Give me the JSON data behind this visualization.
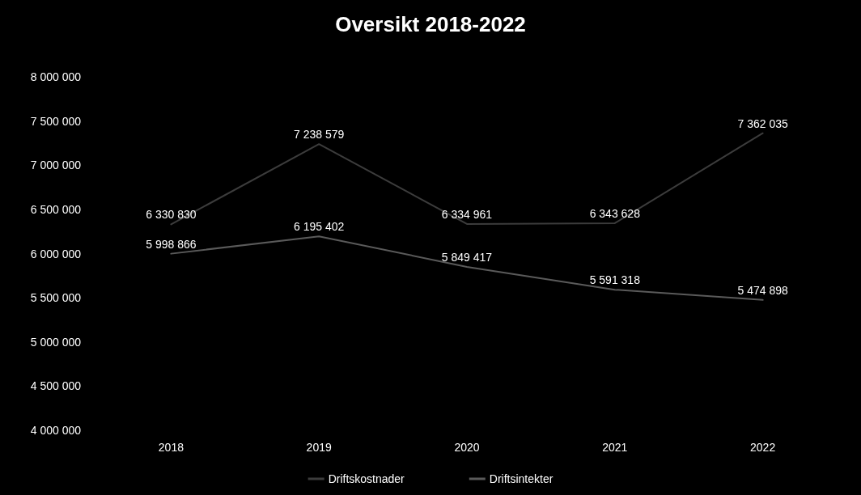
{
  "chart_data": {
    "type": "line",
    "title": "Oversikt 2018-2022",
    "categories": [
      "2018",
      "2019",
      "2020",
      "2021",
      "2022"
    ],
    "series": [
      {
        "name": "Driftskostnader",
        "color": "#3c3c3c",
        "values": [
          6330830,
          7238579,
          6334961,
          6343628,
          7362035
        ],
        "value_labels": [
          "6 330 830",
          "7 238 579",
          "6 334 961",
          "6 343 628",
          "7 362 035"
        ]
      },
      {
        "name": "Driftsintekter",
        "color": "#5a5a5a",
        "values": [
          5998866,
          6195402,
          5849417,
          5591318,
          5474898
        ],
        "value_labels": [
          "5 998 866",
          "6 195 402",
          "5 849 417",
          "5 591 318",
          "5 474 898"
        ]
      }
    ],
    "ylim": [
      4000000,
      8000000
    ],
    "yticks": [
      {
        "value": 4000000,
        "label": "4 000 000"
      },
      {
        "value": 4500000,
        "label": "4 500 000"
      },
      {
        "value": 5000000,
        "label": "5 000 000"
      },
      {
        "value": 5500000,
        "label": "5 500 000"
      },
      {
        "value": 6000000,
        "label": "6 000 000"
      },
      {
        "value": 6500000,
        "label": "6 500 000"
      },
      {
        "value": 7000000,
        "label": "7 000 000"
      },
      {
        "value": 7500000,
        "label": "7 500 000"
      },
      {
        "value": 8000000,
        "label": "8 000 000"
      }
    ],
    "grid": false,
    "legend": "bottom",
    "marker": "none",
    "line_style": "solid"
  }
}
